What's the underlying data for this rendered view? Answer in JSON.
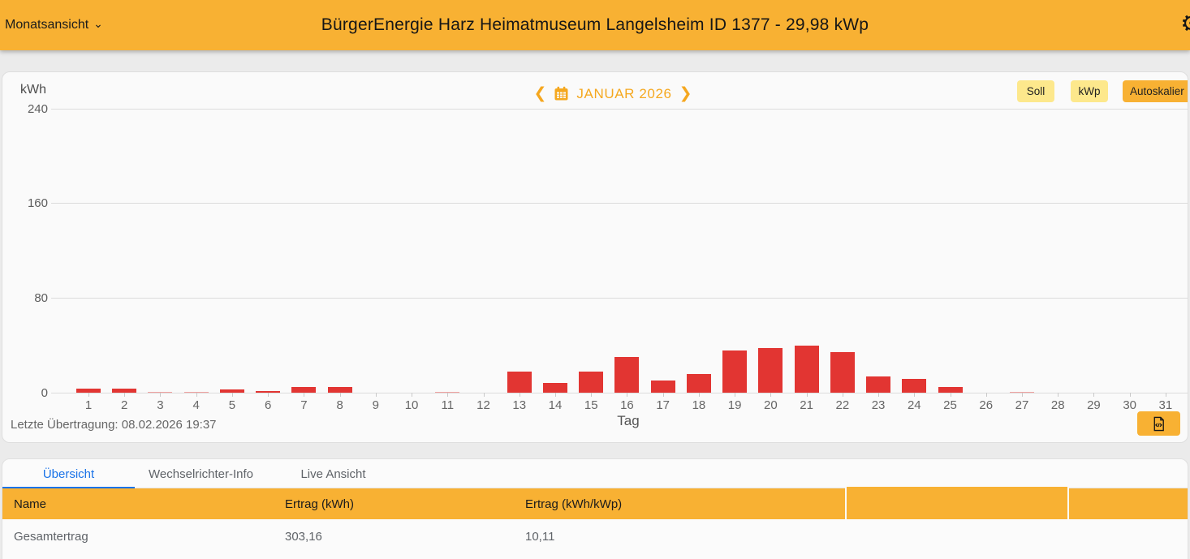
{
  "header": {
    "view_selector": "Monatsansicht",
    "title": "BürgerEnergie Harz Heimatmuseum Langelsheim ID 1377 - 29,98 kWp"
  },
  "chart": {
    "unit_label": "kWh",
    "month_label": "JANUAR 2026",
    "prev_chevron": "❮",
    "next_chevron": "❯",
    "buttons": {
      "soll": "Soll",
      "kwp": "kWp",
      "autoscale": "Autoskalier"
    },
    "ytick_labels": [
      "240",
      "160",
      "80",
      "0"
    ],
    "xaxis_title": "Tag",
    "last_transmission": "Letzte Übertragung: 08.02.2026 19:37"
  },
  "chart_data": {
    "type": "bar",
    "title": "JANUAR 2026",
    "xlabel": "Tag",
    "ylabel": "kWh",
    "ylim": [
      0,
      240
    ],
    "yticks": [
      0,
      80,
      160,
      240
    ],
    "grid": true,
    "bar_color": "#E23532",
    "categories": [
      1,
      2,
      3,
      4,
      5,
      6,
      7,
      8,
      9,
      10,
      11,
      12,
      13,
      14,
      15,
      16,
      17,
      18,
      19,
      20,
      21,
      22,
      23,
      24,
      25,
      26,
      27,
      28,
      29,
      30,
      31
    ],
    "values": [
      3.5,
      3.5,
      1,
      1,
      3,
      1.5,
      5,
      4.5,
      0,
      0,
      0.5,
      0,
      17.5,
      8,
      17.5,
      30,
      10,
      15.5,
      36,
      38,
      39.5,
      34.5,
      13.5,
      12,
      5,
      0,
      0.5,
      0,
      0,
      0,
      0
    ],
    "total_kwh": "303,16",
    "total_kwh_per_kwp": "10,11"
  },
  "tabs": [
    {
      "label": "Übersicht",
      "active": true
    },
    {
      "label": "Wechselrichter-Info",
      "active": false
    },
    {
      "label": "Live Ansicht",
      "active": false
    }
  ],
  "table": {
    "columns": [
      "Name",
      "Ertrag (kWh)",
      "Ertrag (kWh/kWp)"
    ],
    "rows": [
      {
        "name": "Gesamtertrag",
        "ertrag_kwh": "303,16",
        "ertrag_kwh_kwp": "10,11"
      }
    ]
  },
  "colors": {
    "accent_orange": "#F8B133",
    "pale_yellow": "#FDE88C",
    "bar_red": "#E23532",
    "active_tab_blue": "#1A73E8",
    "value_orange": "#F9A825"
  }
}
